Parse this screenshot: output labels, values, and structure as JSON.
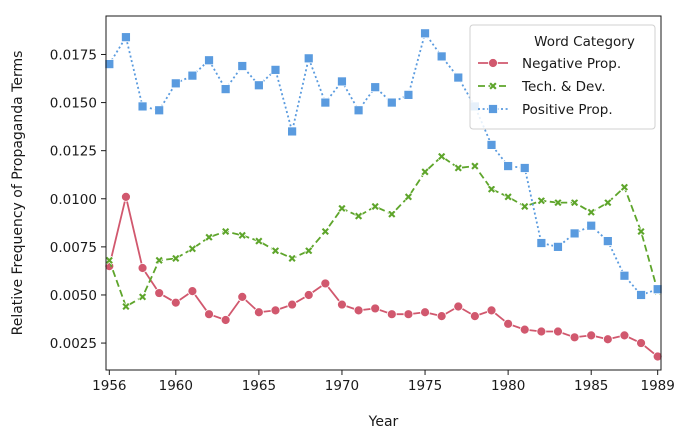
{
  "chart_data": {
    "type": "line",
    "xlabel": "Year",
    "ylabel": "Relative Frequency of Propaganda Terms",
    "x_ticks": [
      1956,
      1960,
      1965,
      1970,
      1975,
      1980,
      1985,
      1989
    ],
    "y_ticks": [
      0.0025,
      0.005,
      0.0075,
      0.01,
      0.0125,
      0.015,
      0.0175
    ],
    "y_tick_labels": [
      "0.0025",
      "0.0050",
      "0.0075",
      "0.0100",
      "0.0125",
      "0.0150",
      "0.0175"
    ],
    "xlim": [
      1955.8,
      1989.2
    ],
    "ylim": [
      0.0011,
      0.0195
    ],
    "grid": false,
    "legend_title": "Word Category",
    "legend_position": "top-right",
    "x": [
      1956,
      1957,
      1958,
      1959,
      1960,
      1961,
      1962,
      1963,
      1964,
      1965,
      1966,
      1967,
      1968,
      1969,
      1970,
      1971,
      1972,
      1973,
      1974,
      1975,
      1976,
      1977,
      1978,
      1979,
      1980,
      1981,
      1982,
      1983,
      1984,
      1985,
      1986,
      1987,
      1988,
      1989
    ],
    "series": [
      {
        "name": "Negative Prop.",
        "color": "#d1586e",
        "marker": "circle",
        "line_style": "solid",
        "values": [
          0.0065,
          0.0101,
          0.0064,
          0.0051,
          0.0046,
          0.0052,
          0.004,
          0.0037,
          0.0049,
          0.0041,
          0.0042,
          0.0045,
          0.005,
          0.0056,
          0.0045,
          0.0042,
          0.0043,
          0.004,
          0.004,
          0.0041,
          0.0039,
          0.0044,
          0.0039,
          0.0042,
          0.0035,
          0.0032,
          0.0031,
          0.0031,
          0.0028,
          0.0029,
          0.0027,
          0.0029,
          0.0025,
          0.0018
        ]
      },
      {
        "name": "Tech. & Dev.",
        "color": "#5ea52b",
        "marker": "x",
        "line_style": "dashed",
        "values": [
          0.0068,
          0.0044,
          0.0049,
          0.0068,
          0.0069,
          0.0074,
          0.008,
          0.0083,
          0.0081,
          0.0078,
          0.0073,
          0.0069,
          0.0073,
          0.0083,
          0.0095,
          0.0091,
          0.0096,
          0.0092,
          0.0101,
          0.0114,
          0.0122,
          0.0116,
          0.0117,
          0.0105,
          0.0101,
          0.0096,
          0.0099,
          0.0098,
          0.0098,
          0.0093,
          0.0098,
          0.0106,
          0.0083,
          0.0052
        ]
      },
      {
        "name": "Positive Prop.",
        "color": "#5a9bdf",
        "marker": "square",
        "line_style": "dotted",
        "values": [
          0.017,
          0.0184,
          0.0148,
          0.0146,
          0.016,
          0.0164,
          0.0172,
          0.0157,
          0.0169,
          0.0159,
          0.0167,
          0.0135,
          0.0173,
          0.015,
          0.0161,
          0.0146,
          0.0158,
          0.015,
          0.0154,
          0.0186,
          0.0174,
          0.0163,
          0.0148,
          0.0128,
          0.0117,
          0.0116,
          0.0077,
          0.0075,
          0.0082,
          0.0086,
          0.0078,
          0.006,
          0.005,
          0.0053
        ]
      }
    ]
  }
}
